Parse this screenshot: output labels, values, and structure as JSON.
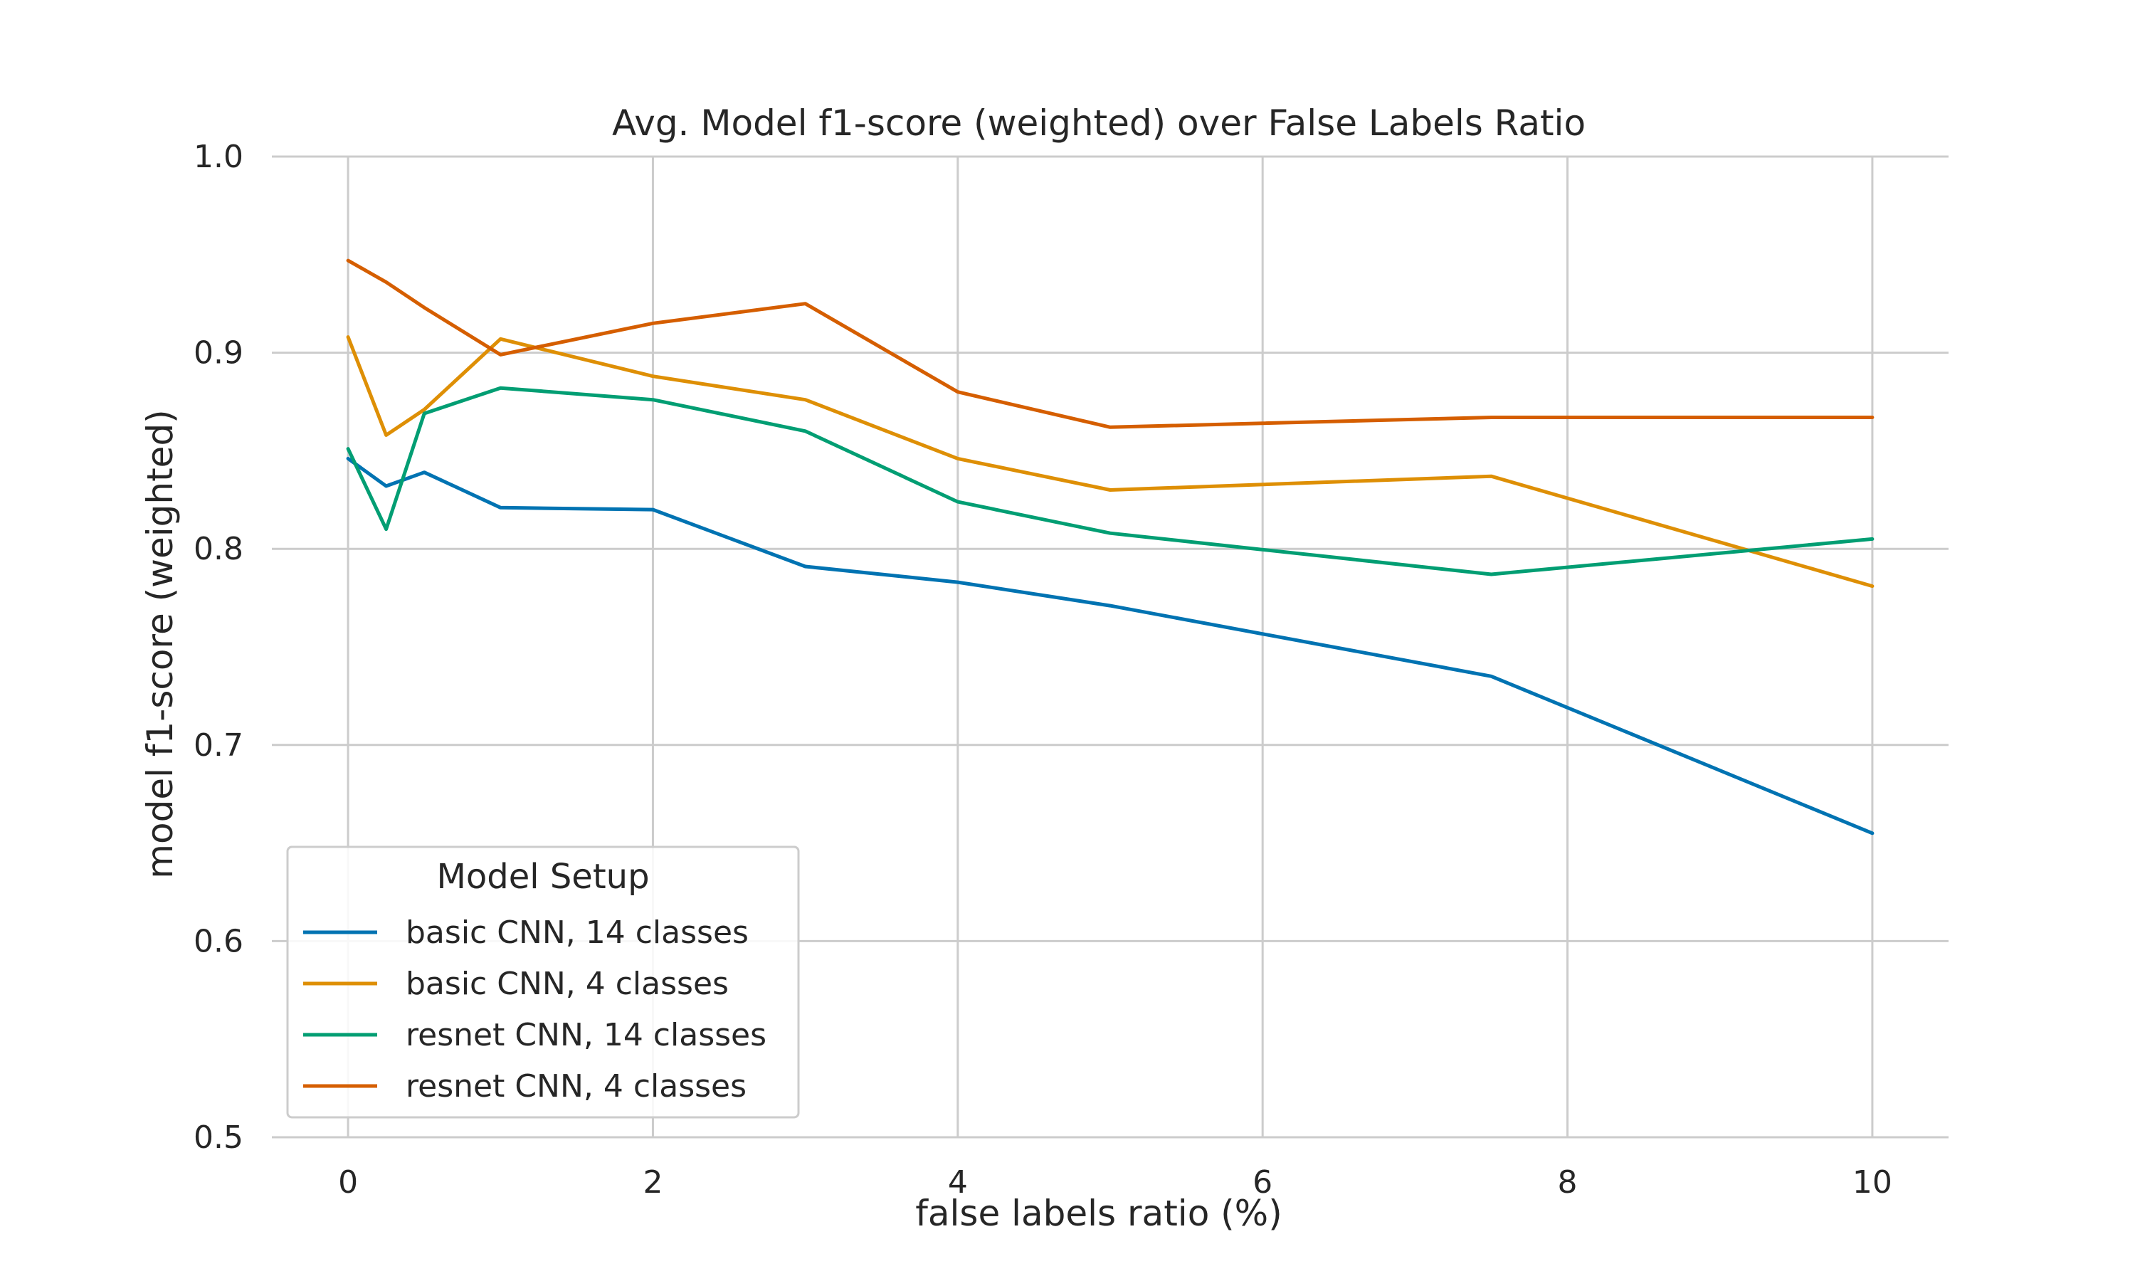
{
  "chart_data": {
    "type": "line",
    "title": "Avg. Model f1-score (weighted) over False Labels Ratio",
    "xlabel": "false labels ratio (%)",
    "ylabel": "model f1-score (weighted)",
    "xlim": [
      -0.5,
      10.5
    ],
    "ylim": [
      0.5,
      1.0
    ],
    "xticks": [
      0,
      2,
      4,
      6,
      8,
      10
    ],
    "xtick_labels": [
      "0",
      "2",
      "4",
      "6",
      "8",
      "10"
    ],
    "yticks": [
      0.5,
      0.6,
      0.7,
      0.8,
      0.9,
      1.0
    ],
    "ytick_labels": [
      "0.5",
      "0.6",
      "0.7",
      "0.8",
      "0.9",
      "1.0"
    ],
    "grid": true,
    "legend": {
      "title": "Model Setup",
      "placement": "lower-left"
    },
    "series": [
      {
        "name": "basic CNN, 14 classes",
        "color": "#0173b2",
        "x": [
          0,
          0.25,
          0.5,
          1,
          2,
          3,
          4,
          5,
          7.5,
          10
        ],
        "y": [
          0.846,
          0.832,
          0.839,
          0.821,
          0.82,
          0.791,
          0.783,
          0.771,
          0.735,
          0.655
        ]
      },
      {
        "name": "basic CNN, 4 classes",
        "color": "#de8f05",
        "x": [
          0,
          0.25,
          0.5,
          1,
          2,
          3,
          4,
          5,
          7.5,
          10
        ],
        "y": [
          0.908,
          0.858,
          0.871,
          0.907,
          0.888,
          0.876,
          0.846,
          0.83,
          0.837,
          0.781
        ]
      },
      {
        "name": "resnet CNN, 14 classes",
        "color": "#029e73",
        "x": [
          0,
          0.25,
          0.5,
          1,
          2,
          3,
          4,
          5,
          7.5,
          10
        ],
        "y": [
          0.851,
          0.81,
          0.869,
          0.882,
          0.876,
          0.86,
          0.824,
          0.808,
          0.787,
          0.805
        ]
      },
      {
        "name": "resnet CNN, 4 classes",
        "color": "#d55e00",
        "x": [
          0,
          0.25,
          0.5,
          1,
          2,
          3,
          4,
          5,
          7.5,
          10
        ],
        "y": [
          0.947,
          0.936,
          0.923,
          0.899,
          0.915,
          0.925,
          0.88,
          0.862,
          0.867,
          0.867
        ]
      }
    ]
  }
}
